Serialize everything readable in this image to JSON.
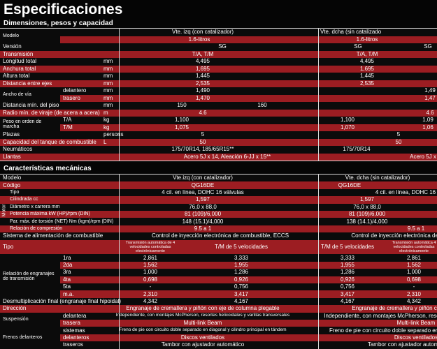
{
  "header": {
    "title": "Especificaciones"
  },
  "sections": [
    {
      "title": "Dimensiones, pesos y capacidad",
      "rows": [
        {
          "label": "Modelo",
          "cells": [
            "Vte. izq (con catalizador)",
            "Vte. dcha (sin catalizado"
          ]
        },
        {
          "cells": [
            "1.6-litros",
            "1.6-litros"
          ]
        },
        {
          "label": "Versión",
          "cells": [
            "SG",
            "SG",
            "SG"
          ]
        },
        {
          "label": "Transmisión",
          "cells": [
            "T/A, T/M",
            "T/A, T/M"
          ]
        },
        {
          "label": "Longitud total",
          "unit": "mm",
          "cells": [
            "4,495",
            "4,495"
          ]
        },
        {
          "label": "Anchura total",
          "unit": "mm",
          "cells": [
            "1,695",
            "1,695"
          ]
        },
        {
          "label": "Altura total",
          "unit": "mm",
          "cells": [
            "1,445",
            "1,445"
          ]
        },
        {
          "label": "Distancia entre ejes",
          "unit": "mm",
          "cells": [
            "2,535",
            "2,535"
          ]
        },
        {
          "label": "Ancho de vía",
          "sub": "delantero",
          "unit": "mm",
          "cells": [
            "1,490",
            "1,49"
          ]
        },
        {
          "sub": "trasero",
          "unit": "mm",
          "cells": [
            "1,470",
            "1,47"
          ]
        },
        {
          "label": "Distancia mín. del piso",
          "unit": "mm",
          "cells": [
            "150",
            "160"
          ]
        },
        {
          "label": "Radio mín. de viraje (de acera a acera)",
          "unit": "m",
          "cells": [
            "4.6",
            "4.6"
          ]
        },
        {
          "label": "Peso en orden de marcha",
          "sub": "T/A",
          "unit": "kg",
          "cells": [
            "1,100",
            "1,100",
            "1,09"
          ]
        },
        {
          "sub": "T/M",
          "unit": "kg",
          "cells": [
            "1,075",
            "1,070",
            "1,06"
          ]
        },
        {
          "label": "Plazas",
          "unit": "persons",
          "cells": [
            "5",
            "5"
          ]
        },
        {
          "label": "Capacidad del tanque de combustible",
          "unit": "L",
          "cells": [
            "50",
            "50"
          ]
        },
        {
          "label": "Neumáticos",
          "cells": [
            "175/70R14, 185/65R15**",
            "175/70R14"
          ]
        },
        {
          "label": "Llantas",
          "cells": [
            "Acero 5J x 14, Aleación 6-JJ x 15**",
            "Acero 5J x"
          ]
        }
      ]
    },
    {
      "title": "Características mecánicas",
      "rows": [
        {
          "label": "Modelo",
          "cells": [
            "Vte.izq (con catalizador)",
            "Vte. dcha (sin catalizador)"
          ]
        },
        {
          "label": "Código",
          "cells": [
            "QG16DE",
            "QG16DE"
          ]
        },
        {
          "group": "Motor",
          "label": "Tipo",
          "cells": [
            "4 cil. en línea, DOHC 16 válvulas",
            "4 cil. en línea, DOHC 16"
          ]
        },
        {
          "label": "Cilindrada  cc",
          "cells": [
            "1,597",
            "1,597"
          ]
        },
        {
          "label": "Diámetro x carrera  mm",
          "cells": [
            "76,0 x 88,0",
            "76,0 x 88,0"
          ]
        },
        {
          "label": "Potencia máxima kW (HP)/rpm (DIN)",
          "cells": [
            "81 (109)/6,000",
            "81 (109)/6,000"
          ]
        },
        {
          "label": "Par. máx. de torsión (NET) Nm (kgm)/rpm (DIN)",
          "cells": [
            "148 (15.1)/4,000",
            "138 (14.1)/4,000"
          ]
        },
        {
          "label": "Relación de compresión",
          "cells": [
            "9.5 a 1",
            "9.5 a 1"
          ]
        },
        {
          "label": "Sistema de alimentación de combustible",
          "cells": [
            "Control de inyección electrónica de combustible, ECCS",
            "Control de inyección electrónica de co"
          ]
        },
        {
          "label": "Tipo",
          "cells": [
            "Transmisión automática de 4 velocidades controladas electrónicamente",
            "T/M de 5 velocidades",
            "T/M de 5 velocidades",
            "Transmisión automática 4 velocidades controladas electrónicamente"
          ]
        },
        {
          "label": "Relación de engranajes de transmisión",
          "sub": "1ra",
          "cells": [
            "2,861",
            "3,333",
            "3,333",
            "2,861"
          ]
        },
        {
          "sub": "2da",
          "cells": [
            "1,562",
            "1,955",
            "1,955",
            "1,562"
          ]
        },
        {
          "sub": "3ra",
          "cells": [
            "1,000",
            "1,286",
            "1,286",
            "1,000"
          ]
        },
        {
          "sub": "4ta",
          "cells": [
            "0,698",
            "0,926",
            "0,926",
            "0,698"
          ]
        },
        {
          "sub": "5ta",
          "cells": [
            "-",
            "0,756",
            "0,756",
            "-"
          ]
        },
        {
          "sub": "m.a.",
          "cells": [
            "2,310",
            "3,417",
            "3,417",
            "2,310"
          ]
        },
        {
          "label": "Desmultiplicación final (engranaje final hipoidal)",
          "cells": [
            "4,342",
            "4,167",
            "4,167",
            "4,342"
          ]
        },
        {
          "label": "Dirección",
          "cells": [
            "Engranaje de cremallera y piñón con eje de columna plegable",
            "Engranaje de cremallera y piñón con eje"
          ]
        },
        {
          "label": "Suspensión",
          "sub": "delantera",
          "cells": [
            "Independiente, con montajes McPherson, resortes helicoidales y varillas transversales",
            "Independiente, con montajes McPherson, resortes heli"
          ]
        },
        {
          "sub": "trasera",
          "cells": [
            "Multi-link Beam",
            "Multi-link Beam"
          ]
        },
        {
          "label": "Frenos delanteros",
          "sub": "sistemas",
          "cells": [
            "Freno de pie con circuito doble separado en diagonal y cilindro principal en tándem",
            "Freno de pie con circuito doble separado en diago"
          ]
        },
        {
          "sub": "delanteros",
          "cells": [
            "Discos ventilados",
            "Discos ventilados"
          ]
        },
        {
          "sub": "traseros",
          "cells": [
            "Tambor con ajustador automático",
            "Tambor con ajustador automático"
          ]
        }
      ]
    }
  ]
}
